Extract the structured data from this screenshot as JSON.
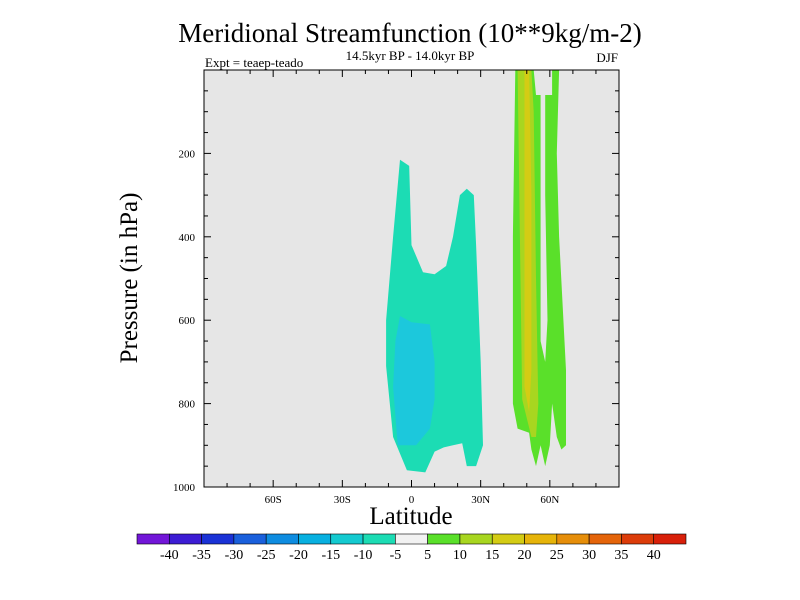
{
  "chart_data": {
    "type": "filled-contour",
    "title": "Meridional Streamfunction (10**9kg/m-2)",
    "subtitle": "14.5kyr BP - 14.0kyr BP",
    "left_note": "Expt = teaep-teado",
    "right_note": "DJF",
    "xlabel": "Latitude",
    "ylabel": "Pressure (in hPa)",
    "xlim": [
      -90,
      90
    ],
    "ylim": [
      1000,
      0
    ],
    "x_ticks": [
      {
        "value": -60,
        "label": "60S"
      },
      {
        "value": -30,
        "label": "30S"
      },
      {
        "value": 0,
        "label": "0"
      },
      {
        "value": 30,
        "label": "30N"
      },
      {
        "value": 60,
        "label": "60N"
      }
    ],
    "y_ticks": [
      {
        "value": 200,
        "label": "200"
      },
      {
        "value": 400,
        "label": "400"
      },
      {
        "value": 600,
        "label": "600"
      },
      {
        "value": 800,
        "label": "800"
      },
      {
        "value": 1000,
        "label": "1000"
      }
    ],
    "background_color": "#e6e6e6",
    "regions": [
      {
        "name": "sh-tropical-negative",
        "level": -10,
        "color": "#1cdcb4",
        "points": [
          [
            -5,
            215
          ],
          [
            -1,
            230
          ],
          [
            0,
            420
          ],
          [
            5,
            485
          ],
          [
            10,
            490
          ],
          [
            15,
            470
          ],
          [
            18,
            400
          ],
          [
            21,
            300
          ],
          [
            24,
            285
          ],
          [
            27,
            300
          ],
          [
            28,
            420
          ],
          [
            30,
            700
          ],
          [
            31,
            900
          ],
          [
            28,
            950
          ],
          [
            24,
            950
          ],
          [
            22,
            895
          ],
          [
            18,
            900
          ],
          [
            14,
            905
          ],
          [
            10,
            915
          ],
          [
            6,
            965
          ],
          [
            -2,
            960
          ],
          [
            -8,
            880
          ],
          [
            -11,
            710
          ],
          [
            -11,
            600
          ],
          [
            -8,
            400
          ]
        ]
      },
      {
        "name": "sh-tropical-core",
        "level": -15,
        "color": "#1cc8dc",
        "points": [
          [
            -5,
            590
          ],
          [
            0,
            605
          ],
          [
            8,
            610
          ],
          [
            10,
            700
          ],
          [
            10,
            790
          ],
          [
            8,
            860
          ],
          [
            2,
            900
          ],
          [
            -6,
            900
          ],
          [
            -8,
            760
          ],
          [
            -7,
            650
          ]
        ]
      },
      {
        "name": "nh-ring",
        "level": 10,
        "color": "#5ae02a",
        "points": [
          [
            45,
            0
          ],
          [
            53,
            0
          ],
          [
            54,
            60
          ],
          [
            61,
            60
          ],
          [
            61,
            0
          ],
          [
            64,
            0
          ],
          [
            63,
            200
          ],
          [
            64,
            400
          ],
          [
            67,
            720
          ],
          [
            67,
            900
          ],
          [
            65,
            910
          ],
          [
            63,
            880
          ],
          [
            61,
            800
          ],
          [
            60,
            900
          ],
          [
            58,
            950
          ],
          [
            56,
            900
          ],
          [
            54,
            950
          ],
          [
            52,
            910
          ],
          [
            51,
            870
          ],
          [
            46,
            860
          ],
          [
            44,
            800
          ],
          [
            44,
            400
          ]
        ]
      },
      {
        "name": "nh-ring-15",
        "level": 15,
        "color": "#a8d620",
        "points": [
          [
            46,
            0
          ],
          [
            52,
            0
          ],
          [
            53,
            100
          ],
          [
            54,
            500
          ],
          [
            55,
            800
          ],
          [
            54,
            880
          ],
          [
            52,
            880
          ],
          [
            48,
            790
          ],
          [
            47,
            400
          ]
        ]
      },
      {
        "name": "nh-ring-20",
        "level": 20,
        "color": "#d4cc14",
        "points": [
          [
            49,
            0
          ],
          [
            51,
            0
          ],
          [
            52,
            300
          ],
          [
            52,
            720
          ],
          [
            51,
            820
          ],
          [
            49,
            760
          ],
          [
            49,
            400
          ]
        ]
      },
      {
        "name": "nh-inner-gap",
        "level": 5,
        "color": "#e6e6e6",
        "points": [
          [
            56,
            0
          ],
          [
            58,
            0
          ],
          [
            58,
            300
          ],
          [
            59,
            600
          ],
          [
            58,
            700
          ],
          [
            56,
            650
          ],
          [
            56,
            300
          ]
        ]
      }
    ],
    "colorbar_levels": [
      "-40",
      "-35",
      "-30",
      "-25",
      "-20",
      "-15",
      "-10",
      "-5",
      "5",
      "10",
      "15",
      "20",
      "25",
      "30",
      "35",
      "40"
    ],
    "colorbar_colors": [
      "#7216d8",
      "#3c1cd4",
      "#1a32d6",
      "#1a60dc",
      "#0e8ce0",
      "#08b0e0",
      "#14cad0",
      "#1cdcb4",
      "#f2f2f2",
      "#5ae02a",
      "#a8d620",
      "#d4cc14",
      "#e6b40a",
      "#e68e0a",
      "#e4640a",
      "#dc3c0a",
      "#d8200a"
    ]
  }
}
